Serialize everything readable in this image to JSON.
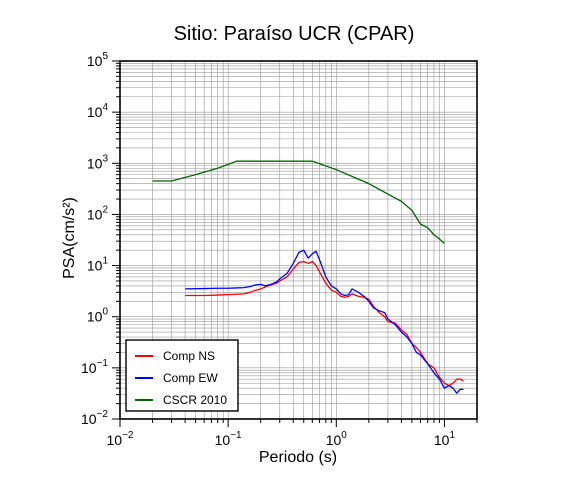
{
  "chart_data": {
    "type": "line",
    "title": "Sitio: Paraíso UCR (CPAR)",
    "xlabel": "Periodo (s)",
    "ylabel": "PSA(cm/s²)",
    "x_scale": "log",
    "y_scale": "log",
    "xlim": [
      0.01,
      20
    ],
    "ylim": [
      0.01,
      100000
    ],
    "grid": true,
    "legend_position": "bottom-left",
    "x_ticks": [
      {
        "value": 0.01,
        "base": "10",
        "exp": "−2"
      },
      {
        "value": 0.1,
        "base": "10",
        "exp": "−1"
      },
      {
        "value": 1,
        "base": "10",
        "exp": "0"
      },
      {
        "value": 10,
        "base": "10",
        "exp": "1"
      }
    ],
    "y_ticks": [
      {
        "value": 0.01,
        "base": "10",
        "exp": "−2"
      },
      {
        "value": 0.1,
        "base": "10",
        "exp": "−1"
      },
      {
        "value": 1,
        "base": "10",
        "exp": "0"
      },
      {
        "value": 10,
        "base": "10",
        "exp": "1"
      },
      {
        "value": 100,
        "base": "10",
        "exp": "2"
      },
      {
        "value": 1000,
        "base": "10",
        "exp": "3"
      },
      {
        "value": 10000,
        "base": "10",
        "exp": "4"
      },
      {
        "value": 100000,
        "base": "10",
        "exp": "5"
      }
    ],
    "series": [
      {
        "name": "Comp NS",
        "color": "#ff0000",
        "points": [
          [
            0.04,
            2.6
          ],
          [
            0.06,
            2.6
          ],
          [
            0.08,
            2.65
          ],
          [
            0.1,
            2.7
          ],
          [
            0.12,
            2.75
          ],
          [
            0.14,
            2.8
          ],
          [
            0.16,
            3.0
          ],
          [
            0.18,
            3.3
          ],
          [
            0.2,
            3.5
          ],
          [
            0.22,
            3.8
          ],
          [
            0.25,
            4.2
          ],
          [
            0.28,
            4.5
          ],
          [
            0.3,
            5.0
          ],
          [
            0.35,
            6.0
          ],
          [
            0.4,
            8.5
          ],
          [
            0.45,
            11.5
          ],
          [
            0.5,
            12.0
          ],
          [
            0.55,
            11.0
          ],
          [
            0.6,
            12.0
          ],
          [
            0.65,
            10.0
          ],
          [
            0.7,
            7.5
          ],
          [
            0.8,
            4.5
          ],
          [
            0.9,
            3.3
          ],
          [
            1.0,
            3.0
          ],
          [
            1.1,
            2.5
          ],
          [
            1.2,
            2.4
          ],
          [
            1.3,
            2.5
          ],
          [
            1.4,
            2.8
          ],
          [
            1.6,
            2.5
          ],
          [
            1.8,
            2.4
          ],
          [
            2.0,
            2.2
          ],
          [
            2.2,
            1.6
          ],
          [
            2.5,
            1.2
          ],
          [
            2.8,
            1.0
          ],
          [
            3.0,
            0.8
          ],
          [
            3.5,
            0.75
          ],
          [
            4.0,
            0.55
          ],
          [
            4.5,
            0.45
          ],
          [
            5.0,
            0.3
          ],
          [
            5.5,
            0.25
          ],
          [
            6.0,
            0.2
          ],
          [
            7.0,
            0.12
          ],
          [
            8.0,
            0.1
          ],
          [
            9.0,
            0.065
          ],
          [
            10.0,
            0.05
          ],
          [
            11.0,
            0.045
          ],
          [
            12.0,
            0.05
          ],
          [
            13.0,
            0.06
          ],
          [
            14.0,
            0.06
          ],
          [
            15.0,
            0.055
          ]
        ]
      },
      {
        "name": "Comp EW",
        "color": "#0000ff",
        "points": [
          [
            0.04,
            3.5
          ],
          [
            0.06,
            3.55
          ],
          [
            0.08,
            3.6
          ],
          [
            0.1,
            3.6
          ],
          [
            0.12,
            3.65
          ],
          [
            0.14,
            3.7
          ],
          [
            0.16,
            3.9
          ],
          [
            0.18,
            4.2
          ],
          [
            0.2,
            4.3
          ],
          [
            0.22,
            4.0
          ],
          [
            0.25,
            4.3
          ],
          [
            0.28,
            4.8
          ],
          [
            0.3,
            5.5
          ],
          [
            0.35,
            7.0
          ],
          [
            0.4,
            11.0
          ],
          [
            0.45,
            18.0
          ],
          [
            0.5,
            20.0
          ],
          [
            0.55,
            14.0
          ],
          [
            0.6,
            17.0
          ],
          [
            0.65,
            19.0
          ],
          [
            0.7,
            13.0
          ],
          [
            0.8,
            6.0
          ],
          [
            0.9,
            4.0
          ],
          [
            1.0,
            3.5
          ],
          [
            1.1,
            2.8
          ],
          [
            1.2,
            2.6
          ],
          [
            1.3,
            2.7
          ],
          [
            1.4,
            3.5
          ],
          [
            1.6,
            3.0
          ],
          [
            1.8,
            2.5
          ],
          [
            2.0,
            2.0
          ],
          [
            2.2,
            1.5
          ],
          [
            2.5,
            1.3
          ],
          [
            2.8,
            1.2
          ],
          [
            3.0,
            0.9
          ],
          [
            3.5,
            0.7
          ],
          [
            4.0,
            0.5
          ],
          [
            4.5,
            0.4
          ],
          [
            5.0,
            0.3
          ],
          [
            5.5,
            0.2
          ],
          [
            6.0,
            0.18
          ],
          [
            7.0,
            0.12
          ],
          [
            8.0,
            0.08
          ],
          [
            9.0,
            0.06
          ],
          [
            10.0,
            0.04
          ],
          [
            11.0,
            0.045
          ],
          [
            12.0,
            0.04
          ],
          [
            13.0,
            0.032
          ],
          [
            14.0,
            0.038
          ],
          [
            15.0,
            0.038
          ]
        ]
      },
      {
        "name": "CSCR 2010",
        "color": "#006400",
        "points": [
          [
            0.02,
            450
          ],
          [
            0.03,
            450
          ],
          [
            0.05,
            600
          ],
          [
            0.08,
            800
          ],
          [
            0.1,
            950
          ],
          [
            0.12,
            1100
          ],
          [
            0.2,
            1100
          ],
          [
            0.4,
            1100
          ],
          [
            0.6,
            1100
          ],
          [
            1.0,
            750
          ],
          [
            2.0,
            400
          ],
          [
            3.0,
            250
          ],
          [
            4.0,
            180
          ],
          [
            5.0,
            120
          ],
          [
            6.0,
            65
          ],
          [
            7.0,
            55
          ],
          [
            8.0,
            40
          ],
          [
            9.0,
            33
          ],
          [
            10.0,
            27
          ]
        ]
      }
    ]
  }
}
